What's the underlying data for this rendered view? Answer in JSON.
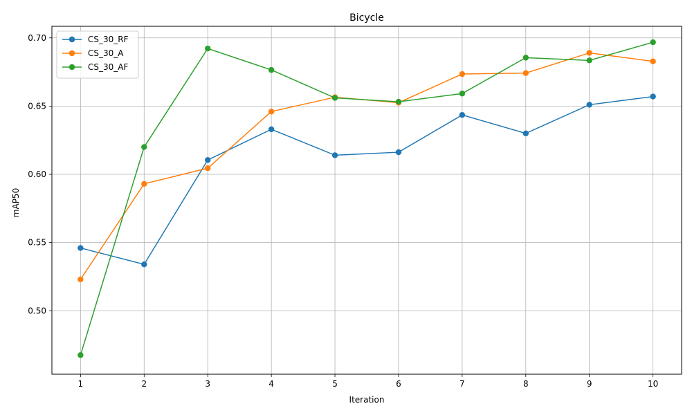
{
  "chart_data": {
    "type": "line",
    "title": "Bicycle",
    "xlabel": "Iteration",
    "ylabel": "mAP50",
    "x": [
      1,
      2,
      3,
      4,
      5,
      6,
      7,
      8,
      9,
      10
    ],
    "xticks": [
      "1",
      "2",
      "3",
      "4",
      "5",
      "6",
      "7",
      "8",
      "9",
      "10"
    ],
    "yticks": [
      "0.50",
      "0.55",
      "0.60",
      "0.65",
      "0.70"
    ],
    "ytick_values": [
      0.5,
      0.55,
      0.6,
      0.65,
      0.7
    ],
    "xlim": [
      0.55,
      10.45
    ],
    "ylim": [
      0.4535,
      0.7085
    ],
    "grid": true,
    "legend_position": "upper-left",
    "series": [
      {
        "name": "CS_30_RF",
        "color": "#1f77b4",
        "values": [
          0.546,
          0.534,
          0.6105,
          0.633,
          0.614,
          0.6162,
          0.6435,
          0.63,
          0.651,
          0.657
        ]
      },
      {
        "name": "CS_30_A",
        "color": "#ff7f0e",
        "values": [
          0.523,
          0.593,
          0.6045,
          0.646,
          0.6565,
          0.6525,
          0.6735,
          0.6742,
          0.689,
          0.6828
        ]
      },
      {
        "name": "CS_30_AF",
        "color": "#2ca02c",
        "values": [
          0.4675,
          0.62,
          0.6922,
          0.6765,
          0.656,
          0.6532,
          0.6592,
          0.6855,
          0.6835,
          0.6968
        ]
      }
    ]
  }
}
